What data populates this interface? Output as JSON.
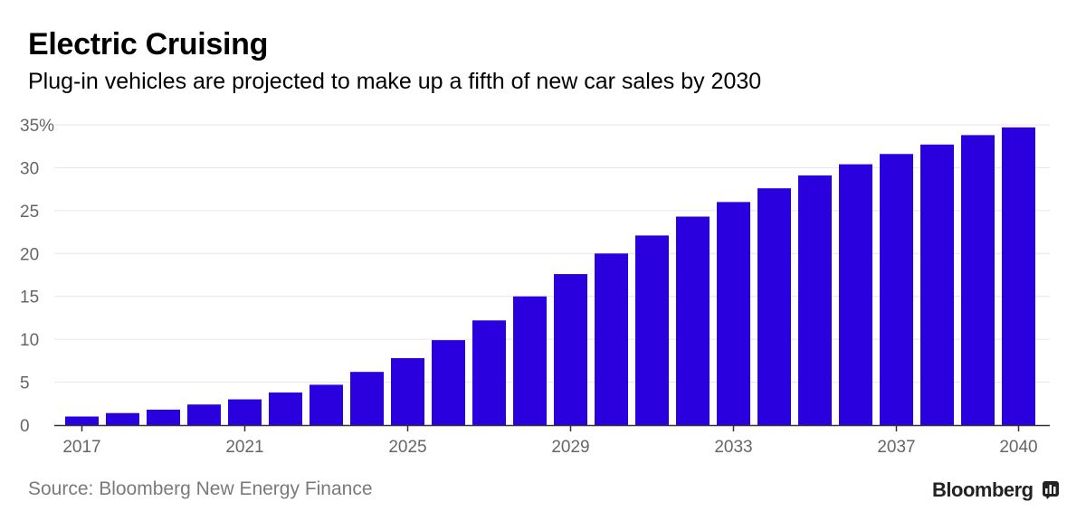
{
  "header": {
    "title": "Electric Cruising",
    "subtitle": "Plug-in vehicles are projected to make up a fifth of new car sales by 2030"
  },
  "footer": {
    "source": "Source: Bloomberg New Energy Finance",
    "brand": "Bloomberg"
  },
  "colors": {
    "bar": "#2a00df",
    "grid": "#e6e6e6",
    "axis": "#333333",
    "tick_text": "#666666"
  },
  "chart_data": {
    "type": "bar",
    "categories": [
      "2017",
      "2018",
      "2019",
      "2020",
      "2021",
      "2022",
      "2023",
      "2024",
      "2025",
      "2026",
      "2027",
      "2028",
      "2029",
      "2030",
      "2031",
      "2032",
      "2033",
      "2034",
      "2035",
      "2036",
      "2037",
      "2038",
      "2039",
      "2040"
    ],
    "values": [
      1.0,
      1.4,
      1.8,
      2.4,
      3.0,
      3.8,
      4.7,
      6.2,
      7.8,
      9.9,
      12.2,
      15.0,
      17.6,
      20.0,
      22.1,
      24.3,
      26.0,
      27.6,
      29.1,
      30.4,
      31.6,
      32.7,
      33.8,
      34.7
    ],
    "x_tick_labels": [
      "2017",
      "2021",
      "2025",
      "2029",
      "2033",
      "2037",
      "2040"
    ],
    "y_tick_labels": [
      "0",
      "5",
      "10",
      "15",
      "20",
      "25",
      "30",
      "35%"
    ],
    "y_ticks": [
      0,
      5,
      10,
      15,
      20,
      25,
      30,
      35
    ],
    "ylim": [
      0,
      35
    ],
    "grid": true
  }
}
